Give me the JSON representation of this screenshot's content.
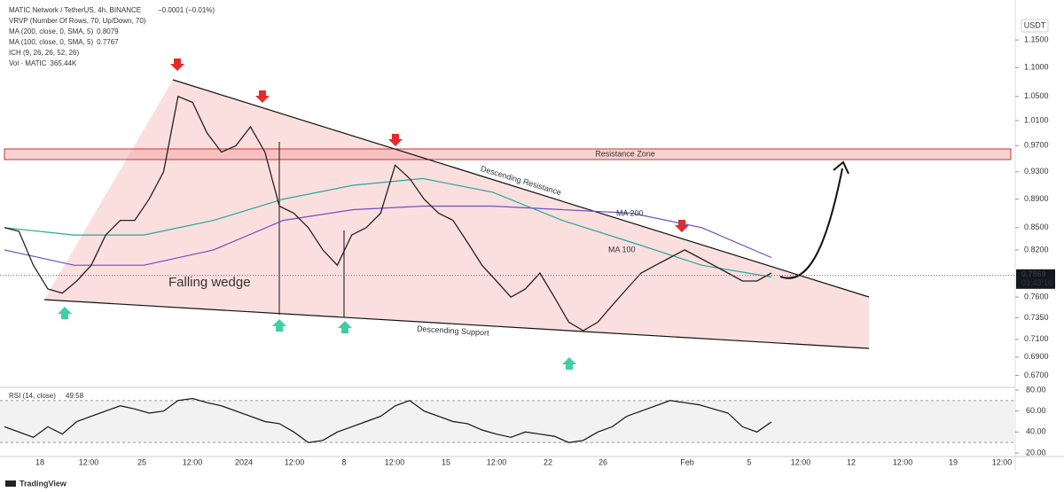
{
  "chart_data": [
    {
      "type": "line",
      "title": "MATIC Network / TetherUS, 4h, BINANCE",
      "change": "−0.0001 (−0.01%)",
      "indicators": [
        {
          "label": "VRVP (Number Of Rows, 70, Up/Down, 70)"
        },
        {
          "label": "MA (200, close, 0, SMA, 5)",
          "value": "0.8079",
          "color": "#6a4fc2"
        },
        {
          "label": "MA (100, close, 0, SMA, 5)",
          "value": "0.7767",
          "color": "#26a69a"
        },
        {
          "label": "ICH (9, 26, 26, 52, 26)"
        },
        {
          "label": "Vol · MATIC",
          "value": "365.44K",
          "color": "#999999"
        }
      ],
      "currency": "USDT",
      "color": "#222222",
      "values": [
        0.85,
        0.845,
        0.8,
        0.77,
        0.765,
        0.78,
        0.8,
        0.84,
        0.86,
        0.86,
        0.89,
        0.93,
        1.05,
        1.04,
        0.99,
        0.96,
        0.97,
        1.0,
        0.96,
        0.88,
        0.87,
        0.85,
        0.82,
        0.8,
        0.84,
        0.85,
        0.87,
        0.94,
        0.92,
        0.89,
        0.87,
        0.86,
        0.83,
        0.8,
        0.78,
        0.76,
        0.77,
        0.79,
        0.76,
        0.73,
        0.72,
        0.73,
        0.75,
        0.77,
        0.79,
        0.8,
        0.81,
        0.82,
        0.81,
        0.8,
        0.79,
        0.78,
        0.78,
        0.79
      ],
      "series": [
        {
          "name": "MA 200",
          "color": "#6a4fc2",
          "values": [
            0.82,
            0.8,
            0.8,
            0.82,
            0.86,
            0.875,
            0.88,
            0.88,
            0.875,
            0.87,
            0.85,
            0.81
          ]
        },
        {
          "name": "MA 100",
          "color": "#26a69a",
          "values": [
            0.85,
            0.84,
            0.84,
            0.86,
            0.89,
            0.91,
            0.92,
            0.9,
            0.86,
            0.83,
            0.8,
            0.785
          ]
        }
      ],
      "ylim": [
        0.659,
        1.192
      ],
      "log": true,
      "yticks": [
        {
          "value": 1.15,
          "label": "1.1500"
        },
        {
          "value": 1.1,
          "label": "1.1000"
        },
        {
          "value": 1.05,
          "label": "1.0500"
        },
        {
          "value": 1.01,
          "label": "1.0100"
        },
        {
          "value": 0.97,
          "label": "0.9700"
        },
        {
          "value": 0.93,
          "label": "0.9300"
        },
        {
          "value": 0.89,
          "label": "0.8900"
        },
        {
          "value": 0.85,
          "label": "0.8500"
        },
        {
          "value": 0.82,
          "label": "0.8200"
        },
        {
          "value": 0.76,
          "label": "0.7600"
        },
        {
          "value": 0.735,
          "label": "0.7350"
        },
        {
          "value": 0.71,
          "label": "0.7100"
        },
        {
          "value": 0.69,
          "label": "0.6900"
        },
        {
          "value": 0.67,
          "label": "0.6700"
        }
      ],
      "last_price": {
        "value": 0.7869,
        "label": "0.7869"
      },
      "countdown": "03:43:16",
      "xtick_labels": [
        "18",
        "12:00",
        "25",
        "12:00",
        "2024",
        "12:00",
        "8",
        "12:00",
        "15",
        "12:00",
        "22",
        "26",
        "Feb",
        "5",
        "12:00",
        "12",
        "12:00",
        "19",
        "12:00"
      ],
      "annotations": {
        "pattern": "Falling wedge",
        "resistance_line": "Descending Resistance",
        "support_line": "Descending Support",
        "zone": "Resistance Zone"
      }
    },
    {
      "type": "line",
      "title": "RSI (14, close)",
      "last": 49.58,
      "color": "#111111",
      "values": [
        45,
        40,
        35,
        45,
        38,
        50,
        55,
        60,
        65,
        62,
        58,
        60,
        70,
        72,
        68,
        65,
        60,
        55,
        50,
        48,
        40,
        30,
        32,
        40,
        45,
        50,
        55,
        65,
        70,
        60,
        55,
        50,
        48,
        42,
        38,
        35,
        40,
        38,
        36,
        30,
        32,
        40,
        45,
        55,
        60,
        65,
        70,
        68,
        66,
        62,
        58,
        45,
        40,
        49.58
      ],
      "ylim": [
        20,
        80
      ],
      "yticks": [
        {
          "value": 80,
          "label": "80.00"
        },
        {
          "value": 60,
          "label": "60.00"
        },
        {
          "value": 40,
          "label": "40.00"
        },
        {
          "value": 20,
          "label": "20.00"
        }
      ],
      "bands": [
        30,
        70
      ]
    }
  ],
  "footer": {
    "brand": "TradingView"
  }
}
